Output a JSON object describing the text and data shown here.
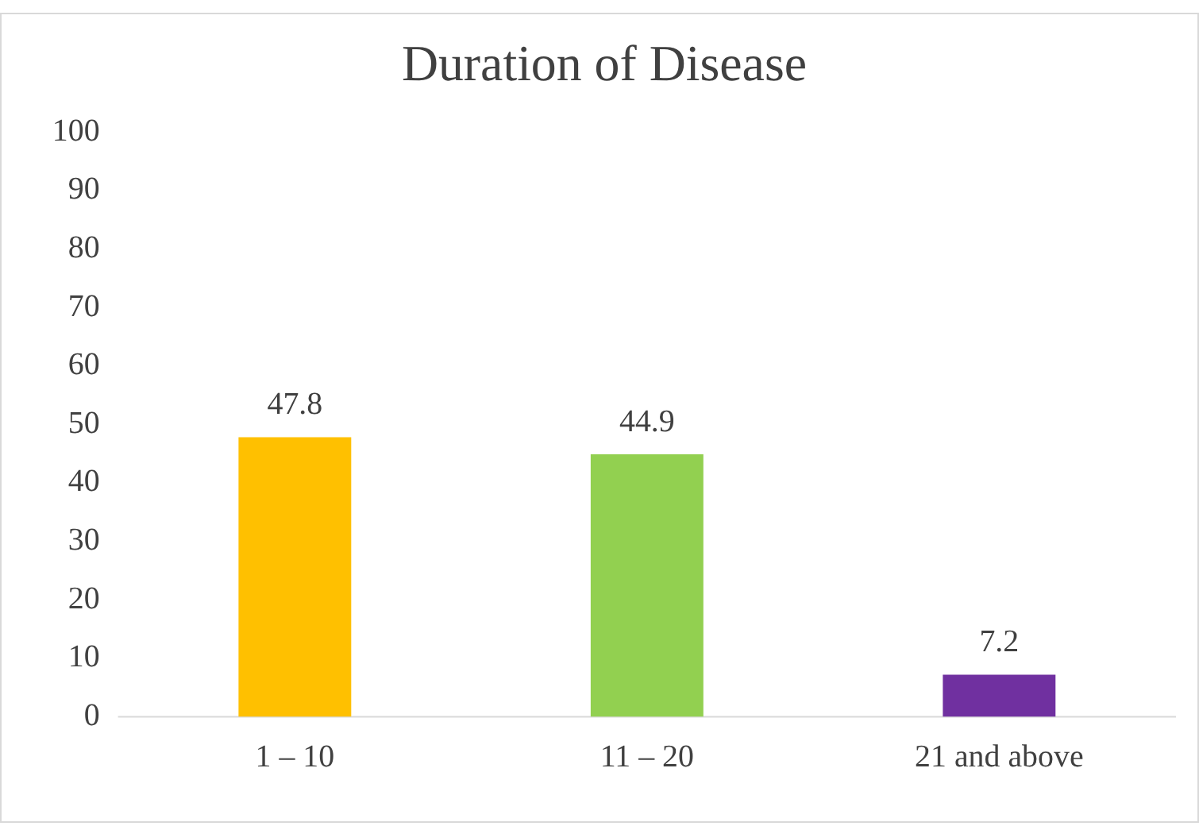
{
  "chart_data": {
    "type": "bar",
    "title": "Duration of Disease",
    "categories": [
      "1 – 10",
      "11 – 20",
      "21 and above"
    ],
    "values": [
      47.8,
      44.9,
      7.2
    ],
    "colors": [
      "#ffc000",
      "#92d050",
      "#7030a0"
    ],
    "ylim": [
      0,
      100
    ],
    "yticks": [
      0,
      10,
      20,
      30,
      40,
      50,
      60,
      70,
      80,
      90,
      100
    ],
    "grid": false,
    "legend": false,
    "data_labels": true
  }
}
